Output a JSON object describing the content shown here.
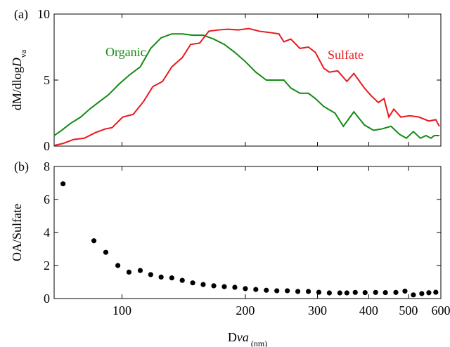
{
  "chart_data": [
    {
      "type": "line",
      "panel_label": "(a)",
      "ylabel": [
        "dM/dlog",
        "D",
        "va"
      ],
      "xlog": true,
      "xlim": [
        68.3,
        600
      ],
      "ylim": [
        0,
        10
      ],
      "xticks": [
        100,
        200,
        300,
        400,
        500,
        600
      ],
      "yticks": [
        0,
        5,
        10
      ],
      "series": [
        {
          "name": "Organic",
          "color": "#138a13",
          "x": [
            68.3,
            71.3,
            74.7,
            79.3,
            83.4,
            87.5,
            92.8,
            98.4,
            104.4,
            110.8,
            117.5,
            124.6,
            132.3,
            140.3,
            148.8,
            157.8,
            167.5,
            177.7,
            188.5,
            200.0,
            212.1,
            225.0,
            238.7,
            248.3,
            258.2,
            271.8,
            285.0,
            296.4,
            310.7,
            330.9,
            346.9,
            368.0,
            390.4,
            410.9,
            430.6,
            453.4,
            475.3,
            494.3,
            514.1,
            534.8,
            552.0,
            567.4,
            578.6,
            595
          ],
          "values": [
            0.8,
            1.2,
            1.7,
            2.2,
            2.8,
            3.3,
            3.9,
            4.7,
            5.4,
            6.0,
            7.4,
            8.2,
            8.5,
            8.5,
            8.4,
            8.4,
            8.1,
            7.7,
            7.1,
            6.4,
            5.6,
            5.0,
            5.0,
            5.0,
            4.4,
            4.0,
            4.0,
            3.6,
            3.0,
            2.5,
            1.5,
            2.6,
            1.6,
            1.2,
            1.3,
            1.5,
            0.9,
            0.6,
            1.1,
            0.6,
            0.8,
            0.6,
            0.8,
            0.8
          ]
        },
        {
          "name": "Sulfate",
          "color": "#e8191e",
          "x": [
            68.3,
            71.8,
            76.2,
            80.9,
            85.8,
            91.0,
            94.6,
            100.4,
            106.5,
            113.0,
            118.9,
            125.6,
            132.3,
            140.3,
            147.1,
            154.7,
            162.9,
            172.2,
            181.2,
            192.2,
            203.9,
            216.3,
            229.5,
            241.5,
            248.3,
            258.2,
            271.8,
            285.0,
            296.4,
            310.7,
            320.6,
            336.1,
            353.8,
            368.0,
            390.4,
            406.0,
            422.3,
            435.9,
            448.0,
            460.6,
            479.0,
            504.1,
            530.6,
            560.8,
            583.2,
            595
          ],
          "values": [
            0.05,
            0.2,
            0.5,
            0.6,
            1.0,
            1.3,
            1.4,
            2.2,
            2.4,
            3.4,
            4.5,
            4.9,
            6.0,
            6.7,
            7.7,
            7.8,
            8.7,
            8.8,
            8.85,
            8.8,
            8.9,
            8.7,
            8.6,
            8.5,
            7.9,
            8.1,
            7.4,
            7.5,
            7.1,
            5.9,
            5.6,
            5.7,
            4.9,
            5.5,
            4.4,
            3.8,
            3.3,
            3.6,
            2.2,
            2.8,
            2.2,
            2.3,
            2.2,
            1.9,
            2.0,
            1.5
          ]
        }
      ]
    },
    {
      "type": "scatter",
      "panel_label": "(b)",
      "ylabel": [
        "OA/Sulfate"
      ],
      "xlabel": [
        "D",
        "va",
        " (nm)"
      ],
      "xlog": true,
      "xlim": [
        68.3,
        600
      ],
      "ylim": [
        0,
        8
      ],
      "xticks": [
        100,
        200,
        300,
        400,
        500,
        600
      ],
      "yticks": [
        0,
        2,
        4,
        6,
        8
      ],
      "series": [
        {
          "color": "#000000",
          "x": [
            71.8,
            85.4,
            91.3,
            97.7,
            104.0,
            110.8,
            117.5,
            124.6,
            132.3,
            140.3,
            148.8,
            157.8,
            167.5,
            177.7,
            188.5,
            200.0,
            212.1,
            225.0,
            238.7,
            253.2,
            268.6,
            285.0,
            302.3,
            320.6,
            340.1,
            353.8,
            370.9,
            392.0,
            415.8,
            439.3,
            465.9,
            490.4,
            514.1,
            539.0,
            560.8,
            583.2
          ],
          "values": [
            6.95,
            3.5,
            2.8,
            2.0,
            1.6,
            1.7,
            1.45,
            1.3,
            1.25,
            1.1,
            0.95,
            0.85,
            0.77,
            0.72,
            0.68,
            0.6,
            0.55,
            0.5,
            0.47,
            0.47,
            0.43,
            0.43,
            0.38,
            0.34,
            0.34,
            0.34,
            0.37,
            0.36,
            0.37,
            0.36,
            0.37,
            0.45,
            0.22,
            0.3,
            0.35,
            0.38
          ]
        }
      ]
    }
  ]
}
